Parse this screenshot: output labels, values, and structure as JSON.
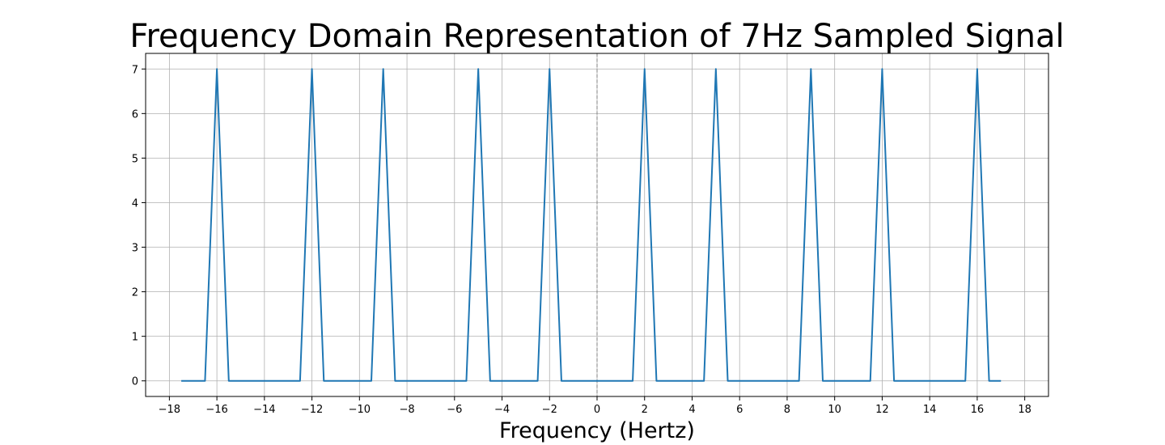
{
  "chart_data": {
    "type": "line",
    "title": "Frequency Domain Representation of 7Hz Sampled Signal",
    "xlabel": "Frequency (Hertz)",
    "ylabel": "",
    "xlim": [
      -19,
      19
    ],
    "ylim": [
      -0.35,
      7.35
    ],
    "x_ticks": [
      -18,
      -16,
      -14,
      -12,
      -10,
      -8,
      -6,
      -4,
      -2,
      0,
      2,
      4,
      6,
      8,
      10,
      12,
      14,
      16,
      18
    ],
    "y_ticks": [
      0,
      1,
      2,
      3,
      4,
      5,
      6,
      7
    ],
    "grid": true,
    "reference_line_x": 0,
    "line_color": "#1f77b4",
    "series": [
      {
        "x": [
          -17.5,
          -16.5,
          -16,
          -15.5,
          -12.5,
          -12,
          -11.5,
          -9.5,
          -9,
          -8.5,
          -5.5,
          -5,
          -4.5,
          -2.5,
          -2,
          -1.5,
          1.5,
          2,
          2.5,
          4.5,
          5,
          5.5,
          8.5,
          9,
          9.5,
          11.5,
          12,
          12.5,
          15.5,
          16,
          16.5,
          17
        ],
        "y": [
          0,
          0,
          7,
          0,
          0,
          7,
          0,
          0,
          7,
          0,
          0,
          7,
          0,
          0,
          7,
          0,
          0,
          7,
          0,
          0,
          7,
          0,
          0,
          7,
          0,
          0,
          7,
          0,
          0,
          7,
          0,
          0
        ]
      }
    ]
  }
}
